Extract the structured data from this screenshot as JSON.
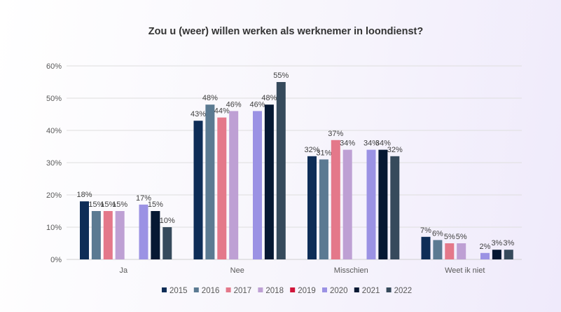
{
  "chart_data": {
    "type": "bar",
    "title": "Zou u (weer) willen werken als werknemer in loondienst?",
    "xlabel": "",
    "ylabel": "",
    "ylim": [
      0,
      60
    ],
    "yticks": [
      "0%",
      "10%",
      "20%",
      "30%",
      "40%",
      "50%",
      "60%"
    ],
    "grid": true,
    "legend_position": "bottom",
    "categories": [
      "Ja",
      "Nee",
      "Misschien",
      "Weet ik niet"
    ],
    "series": [
      {
        "name": "2015",
        "color": "#0e2d57",
        "values": [
          18,
          43,
          32,
          7
        ]
      },
      {
        "name": "2016",
        "color": "#5b7a92",
        "values": [
          15,
          48,
          31,
          6
        ]
      },
      {
        "name": "2017",
        "color": "#e4788a",
        "values": [
          15,
          44,
          37,
          5
        ]
      },
      {
        "name": "2018",
        "color": "#bea0d4",
        "values": [
          15,
          46,
          34,
          5
        ]
      },
      {
        "name": "2019",
        "color": "#d0153a",
        "values": [
          null,
          null,
          null,
          null
        ]
      },
      {
        "name": "2020",
        "color": "#9b92e4",
        "values": [
          17,
          46,
          34,
          2
        ]
      },
      {
        "name": "2021",
        "color": "#061833",
        "values": [
          15,
          48,
          34,
          3
        ]
      },
      {
        "name": "2022",
        "color": "#364a5c",
        "values": [
          10,
          55,
          32,
          3
        ]
      }
    ],
    "value_suffix": "%"
  }
}
